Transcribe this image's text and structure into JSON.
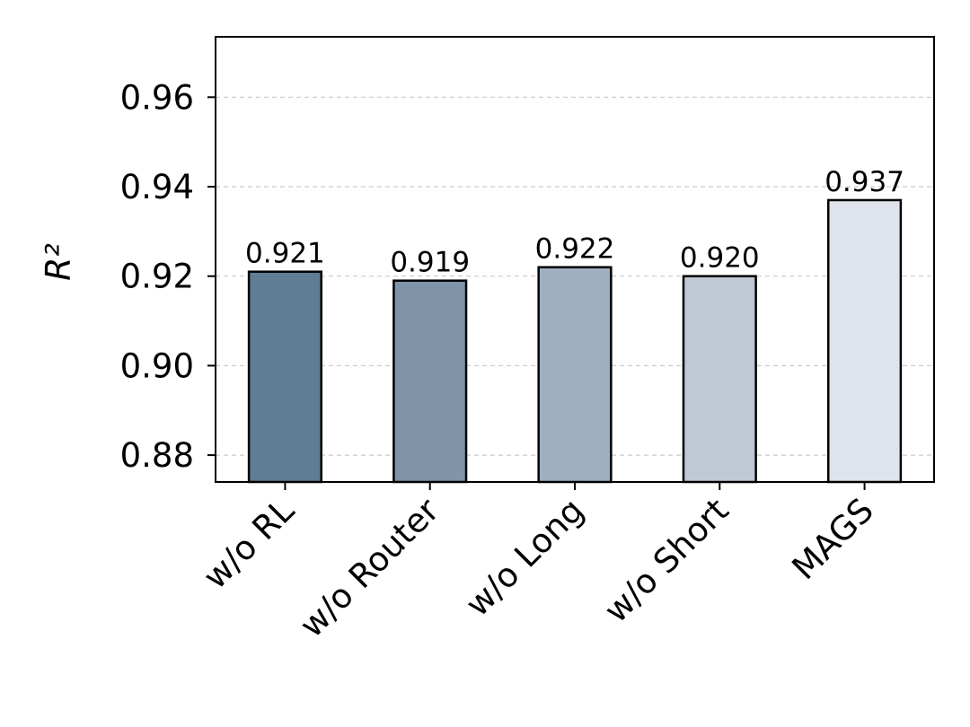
{
  "chart_data": {
    "type": "bar",
    "ylabel": "R²",
    "categories": [
      "w/o RL",
      "w/o Router",
      "w/o Long",
      "w/o Short",
      "MAGS"
    ],
    "values": [
      0.921,
      0.919,
      0.922,
      0.92,
      0.937
    ],
    "value_labels": [
      "0.921",
      "0.919",
      "0.922",
      "0.920",
      "0.937"
    ],
    "colors": [
      "#5f7d95",
      "#7f94a8",
      "#9eafbf",
      "#bfc9d4",
      "#dfe4ec"
    ],
    "ylim": [
      0.874,
      0.9735
    ],
    "yticks": [
      0.88,
      {
        "value": 0.9,
        "label": "0.90"
      },
      0.92,
      0.94,
      0.96
    ],
    "grid": true
  }
}
